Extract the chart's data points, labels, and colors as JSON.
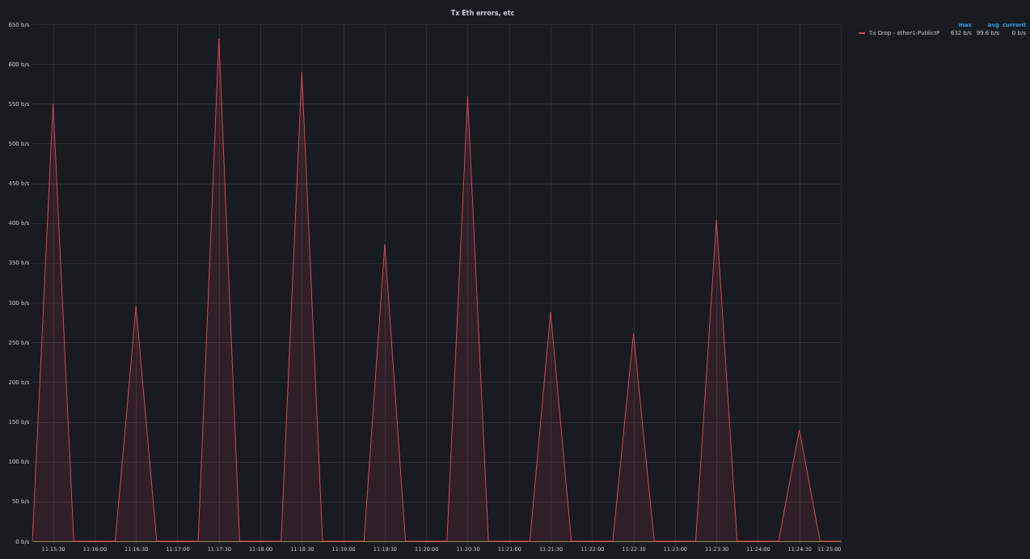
{
  "chart_data": {
    "type": "area",
    "title": "Tx Eth errors, etc",
    "x": [
      11.254167,
      11.258333,
      11.2625,
      11.266667,
      11.270833,
      11.275,
      11.279167,
      11.283333,
      11.2875,
      11.291667,
      11.295833,
      11.3,
      11.304167,
      11.308333,
      11.3125,
      11.316667,
      11.320833,
      11.325,
      11.329167,
      11.333333,
      11.3375,
      11.341667,
      11.345833,
      11.35,
      11.354167,
      11.358333,
      11.3625,
      11.366667,
      11.370833,
      11.375,
      11.379167,
      11.383333,
      11.3875,
      11.391667,
      11.395833,
      11.4,
      11.404167,
      11.408333,
      11.4125,
      11.416667
    ],
    "series": [
      {
        "name": "Tx Drop - ether1-PublicIP",
        "color": "#e0445c",
        "values": [
          0,
          550,
          0,
          0,
          0,
          295,
          0,
          0,
          0,
          632,
          0,
          0,
          0,
          590,
          0,
          0,
          0,
          373,
          0,
          0,
          0,
          559,
          0,
          0,
          0,
          288,
          0,
          0,
          0,
          261,
          0,
          0,
          0,
          404,
          0,
          0,
          0,
          140,
          0,
          0
        ]
      }
    ],
    "xlim": [
      11.254167,
      11.416667
    ],
    "xticks": [
      {
        "value": 11.258333,
        "label": "11:15:30"
      },
      {
        "value": 11.266667,
        "label": "11:16:00"
      },
      {
        "value": 11.275,
        "label": "11:16:30"
      },
      {
        "value": 11.283333,
        "label": "11:17:00"
      },
      {
        "value": 11.291667,
        "label": "11:17:30"
      },
      {
        "value": 11.3,
        "label": "11:18:00"
      },
      {
        "value": 11.308333,
        "label": "11:18:30"
      },
      {
        "value": 11.316667,
        "label": "11:19:00"
      },
      {
        "value": 11.325,
        "label": "11:19:30"
      },
      {
        "value": 11.333333,
        "label": "11:20:00"
      },
      {
        "value": 11.341667,
        "label": "11:20:30"
      },
      {
        "value": 11.35,
        "label": "11:21:00"
      },
      {
        "value": 11.358333,
        "label": "11:21:30"
      },
      {
        "value": 11.366667,
        "label": "11:22:00"
      },
      {
        "value": 11.375,
        "label": "11:22:30"
      },
      {
        "value": 11.383333,
        "label": "11:23:00"
      },
      {
        "value": 11.391667,
        "label": "11:23:30"
      },
      {
        "value": 11.4,
        "label": "11:24:00"
      },
      {
        "value": 11.408333,
        "label": "11:24:30"
      },
      {
        "value": 11.416667,
        "label": "11:25:00"
      }
    ],
    "ylim": [
      0,
      650
    ],
    "yticks": [
      {
        "value": 0,
        "label": "0 b/s"
      },
      {
        "value": 50,
        "label": "50 b/s"
      },
      {
        "value": 100,
        "label": "100 b/s"
      },
      {
        "value": 150,
        "label": "150 b/s"
      },
      {
        "value": 200,
        "label": "200 b/s"
      },
      {
        "value": 250,
        "label": "250 b/s"
      },
      {
        "value": 300,
        "label": "300 b/s"
      },
      {
        "value": 350,
        "label": "350 b/s"
      },
      {
        "value": 400,
        "label": "400 b/s"
      },
      {
        "value": 450,
        "label": "450 b/s"
      },
      {
        "value": 500,
        "label": "500 b/s"
      },
      {
        "value": 550,
        "label": "550 b/s"
      },
      {
        "value": 600,
        "label": "600 b/s"
      },
      {
        "value": 650,
        "label": "650 b/s"
      }
    ],
    "annotations": [
      "max",
      "avg",
      "current",
      "632 b/s",
      "99.6 b/s",
      "0 b/s"
    ],
    "grid": true,
    "legend": "top right",
    "marker": "none",
    "line_style": "solid"
  }
}
